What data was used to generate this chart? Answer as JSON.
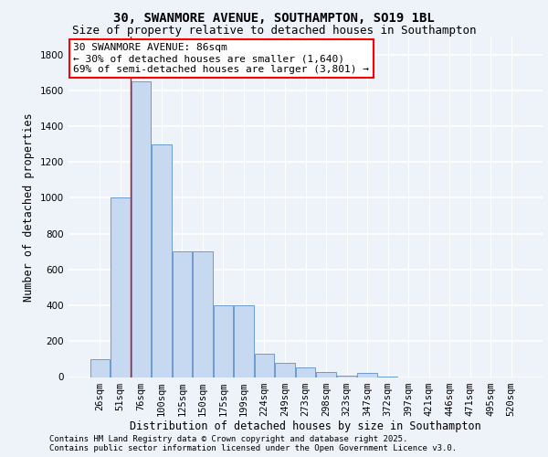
{
  "title_line1": "30, SWANMORE AVENUE, SOUTHAMPTON, SO19 1BL",
  "title_line2": "Size of property relative to detached houses in Southampton",
  "xlabel": "Distribution of detached houses by size in Southampton",
  "ylabel": "Number of detached properties",
  "categories": [
    "26sqm",
    "51sqm",
    "76sqm",
    "100sqm",
    "125sqm",
    "150sqm",
    "175sqm",
    "199sqm",
    "224sqm",
    "249sqm",
    "273sqm",
    "298sqm",
    "323sqm",
    "347sqm",
    "372sqm",
    "397sqm",
    "421sqm",
    "446sqm",
    "471sqm",
    "495sqm",
    "520sqm"
  ],
  "values": [
    100,
    1000,
    1650,
    1300,
    700,
    700,
    400,
    400,
    130,
    80,
    55,
    30,
    10,
    25,
    5,
    0,
    0,
    0,
    0,
    0,
    0
  ],
  "bar_color": "#c6d9f1",
  "bar_edge_color": "#5b8fc9",
  "annotation_text_line1": "30 SWANMORE AVENUE: 86sqm",
  "annotation_text_line2": "← 30% of detached houses are smaller (1,640)",
  "annotation_text_line3": "69% of semi-detached houses are larger (3,801) →",
  "annotation_box_color": "white",
  "annotation_box_edge_color": "red",
  "vline_x": 1.5,
  "vline_color": "red",
  "ylim": [
    0,
    1900
  ],
  "yticks": [
    0,
    200,
    400,
    600,
    800,
    1000,
    1200,
    1400,
    1600,
    1800
  ],
  "footer_line1": "Contains HM Land Registry data © Crown copyright and database right 2025.",
  "footer_line2": "Contains public sector information licensed under the Open Government Licence v3.0.",
  "background_color": "#eef2f9",
  "grid_color": "#ffffff",
  "title_fontsize": 10,
  "subtitle_fontsize": 9,
  "axis_label_fontsize": 8.5,
  "tick_fontsize": 7.5,
  "annotation_fontsize": 8,
  "footer_fontsize": 6.5
}
